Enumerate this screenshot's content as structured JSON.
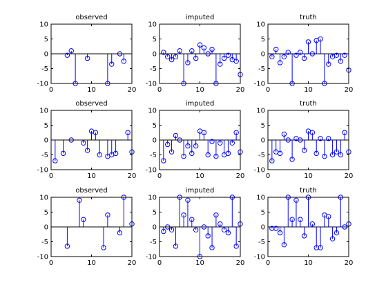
{
  "colors": {
    "stem": "#0000ff",
    "axis": "#000000",
    "background": "#ffffff"
  },
  "chart_data": [
    {
      "type": "stem",
      "title": "observed",
      "xlim": [
        0,
        20
      ],
      "ylim": [
        -10,
        10
      ],
      "xticks": [
        0,
        10,
        20
      ],
      "yticks": [
        -10,
        -5,
        0,
        5,
        10
      ],
      "grid": false,
      "series": [
        {
          "x": [
            4,
            5,
            6,
            9,
            14,
            15,
            17,
            18
          ],
          "values": [
            -0.5,
            1,
            -10,
            -1.5,
            -10,
            -3.5,
            0,
            -2.5
          ]
        }
      ]
    },
    {
      "type": "stem",
      "title": "imputed",
      "xlim": [
        0,
        20
      ],
      "ylim": [
        -10,
        10
      ],
      "xticks": [
        0,
        10,
        20
      ],
      "yticks": [
        -10,
        -5,
        0,
        5,
        10
      ],
      "grid": false,
      "series": [
        {
          "x": [
            1,
            2,
            3,
            4,
            5,
            6,
            7,
            8,
            9,
            10,
            11,
            12,
            13,
            14,
            15,
            16,
            17,
            18,
            19,
            20
          ],
          "values": [
            0.5,
            -1,
            -2,
            -1,
            1,
            -10,
            -3,
            1,
            -1.5,
            3,
            2,
            0,
            1.5,
            -10,
            -3.5,
            -1.5,
            -0.5,
            -2,
            -2.5,
            -7
          ]
        }
      ]
    },
    {
      "type": "stem",
      "title": "truth",
      "xlim": [
        0,
        20
      ],
      "ylim": [
        -10,
        10
      ],
      "xticks": [
        0,
        10,
        20
      ],
      "yticks": [
        -10,
        -5,
        0,
        5,
        10
      ],
      "grid": false,
      "series": [
        {
          "x": [
            1,
            2,
            3,
            4,
            5,
            6,
            7,
            8,
            9,
            10,
            11,
            12,
            13,
            14,
            15,
            16,
            17,
            18,
            19,
            20
          ],
          "values": [
            -1,
            1.5,
            -3,
            -1,
            0.5,
            -10,
            -0.5,
            0.5,
            -1.5,
            4,
            0,
            4.5,
            5,
            -10,
            -3.5,
            -1,
            -0.5,
            -2.5,
            -0.5,
            -5.5
          ]
        }
      ]
    },
    {
      "type": "stem",
      "title": "observed",
      "xlim": [
        0,
        20
      ],
      "ylim": [
        -10,
        10
      ],
      "xticks": [
        0,
        10,
        20
      ],
      "yticks": [
        -10,
        -5,
        0,
        5,
        10
      ],
      "grid": false,
      "series": [
        {
          "x": [
            1,
            3,
            5,
            8,
            9,
            10,
            11,
            12,
            14,
            15,
            16,
            19,
            20
          ],
          "values": [
            -7,
            -4.5,
            0,
            -1,
            -3.5,
            3,
            2.5,
            -5,
            -5.5,
            -5,
            -4.5,
            2.5,
            -4
          ]
        }
      ]
    },
    {
      "type": "stem",
      "title": "imputed",
      "xlim": [
        0,
        20
      ],
      "ylim": [
        -10,
        10
      ],
      "xticks": [
        0,
        10,
        20
      ],
      "yticks": [
        -10,
        -5,
        0,
        5,
        10
      ],
      "grid": false,
      "series": [
        {
          "x": [
            1,
            2,
            3,
            4,
            5,
            6,
            7,
            8,
            9,
            10,
            11,
            12,
            13,
            14,
            15,
            16,
            17,
            18,
            19,
            20
          ],
          "values": [
            -7,
            -1.5,
            -4,
            1.5,
            0,
            -5.5,
            -2,
            -4.5,
            -2,
            3,
            2.5,
            -5,
            -0.5,
            -5.5,
            -1,
            -5,
            -4.5,
            -1,
            2.5,
            -4
          ]
        }
      ]
    },
    {
      "type": "stem",
      "title": "truth",
      "xlim": [
        0,
        20
      ],
      "ylim": [
        -10,
        10
      ],
      "xticks": [
        0,
        10,
        20
      ],
      "yticks": [
        -10,
        -5,
        0,
        5,
        10
      ],
      "grid": false,
      "series": [
        {
          "x": [
            1,
            2,
            3,
            4,
            5,
            6,
            7,
            8,
            9,
            10,
            11,
            12,
            13,
            14,
            15,
            16,
            17,
            18,
            19,
            20
          ],
          "values": [
            -7,
            -4,
            -4.5,
            2,
            0,
            -6.5,
            0.5,
            0,
            -3.5,
            3,
            2.5,
            -4.5,
            0.5,
            -5.5,
            0.5,
            -5,
            -4,
            -5,
            2.5,
            -4
          ]
        }
      ]
    },
    {
      "type": "stem",
      "title": "observed",
      "xlim": [
        0,
        20
      ],
      "ylim": [
        -10,
        10
      ],
      "xticks": [
        0,
        10,
        20
      ],
      "yticks": [
        -10,
        -5,
        0,
        5,
        10
      ],
      "grid": false,
      "series": [
        {
          "x": [
            4,
            7,
            8,
            13,
            14,
            17,
            18,
            20
          ],
          "values": [
            -6.5,
            9,
            2.5,
            -7,
            4,
            -2,
            10,
            1
          ]
        }
      ]
    },
    {
      "type": "stem",
      "title": "imputed",
      "xlim": [
        0,
        20
      ],
      "ylim": [
        -10,
        10
      ],
      "xticks": [
        0,
        10,
        20
      ],
      "yticks": [
        -10,
        -5,
        0,
        5,
        10
      ],
      "grid": false,
      "series": [
        {
          "x": [
            1,
            2,
            3,
            4,
            5,
            6,
            7,
            8,
            9,
            10,
            11,
            12,
            13,
            14,
            15,
            16,
            17,
            18,
            19,
            20
          ],
          "values": [
            -1.5,
            0,
            -1,
            -6.5,
            10,
            4,
            9,
            2.5,
            -1,
            -10,
            0,
            -3,
            -7,
            4,
            1,
            -1,
            -2,
            10,
            -6.5,
            1
          ]
        }
      ]
    },
    {
      "type": "stem",
      "title": "truth",
      "xlim": [
        0,
        20
      ],
      "ylim": [
        -10,
        10
      ],
      "xticks": [
        0,
        10,
        20
      ],
      "yticks": [
        -10,
        -5,
        0,
        5,
        10
      ],
      "grid": false,
      "series": [
        {
          "x": [
            1,
            2,
            3,
            4,
            5,
            6,
            7,
            8,
            9,
            10,
            11,
            12,
            13,
            14,
            15,
            16,
            17,
            18,
            19,
            20
          ],
          "values": [
            -0.5,
            -0.5,
            -2,
            -6,
            10,
            2.5,
            9,
            2.5,
            -3,
            10,
            1,
            -7,
            -7,
            4,
            3.5,
            -4,
            -2,
            10,
            0,
            1
          ]
        }
      ]
    }
  ]
}
